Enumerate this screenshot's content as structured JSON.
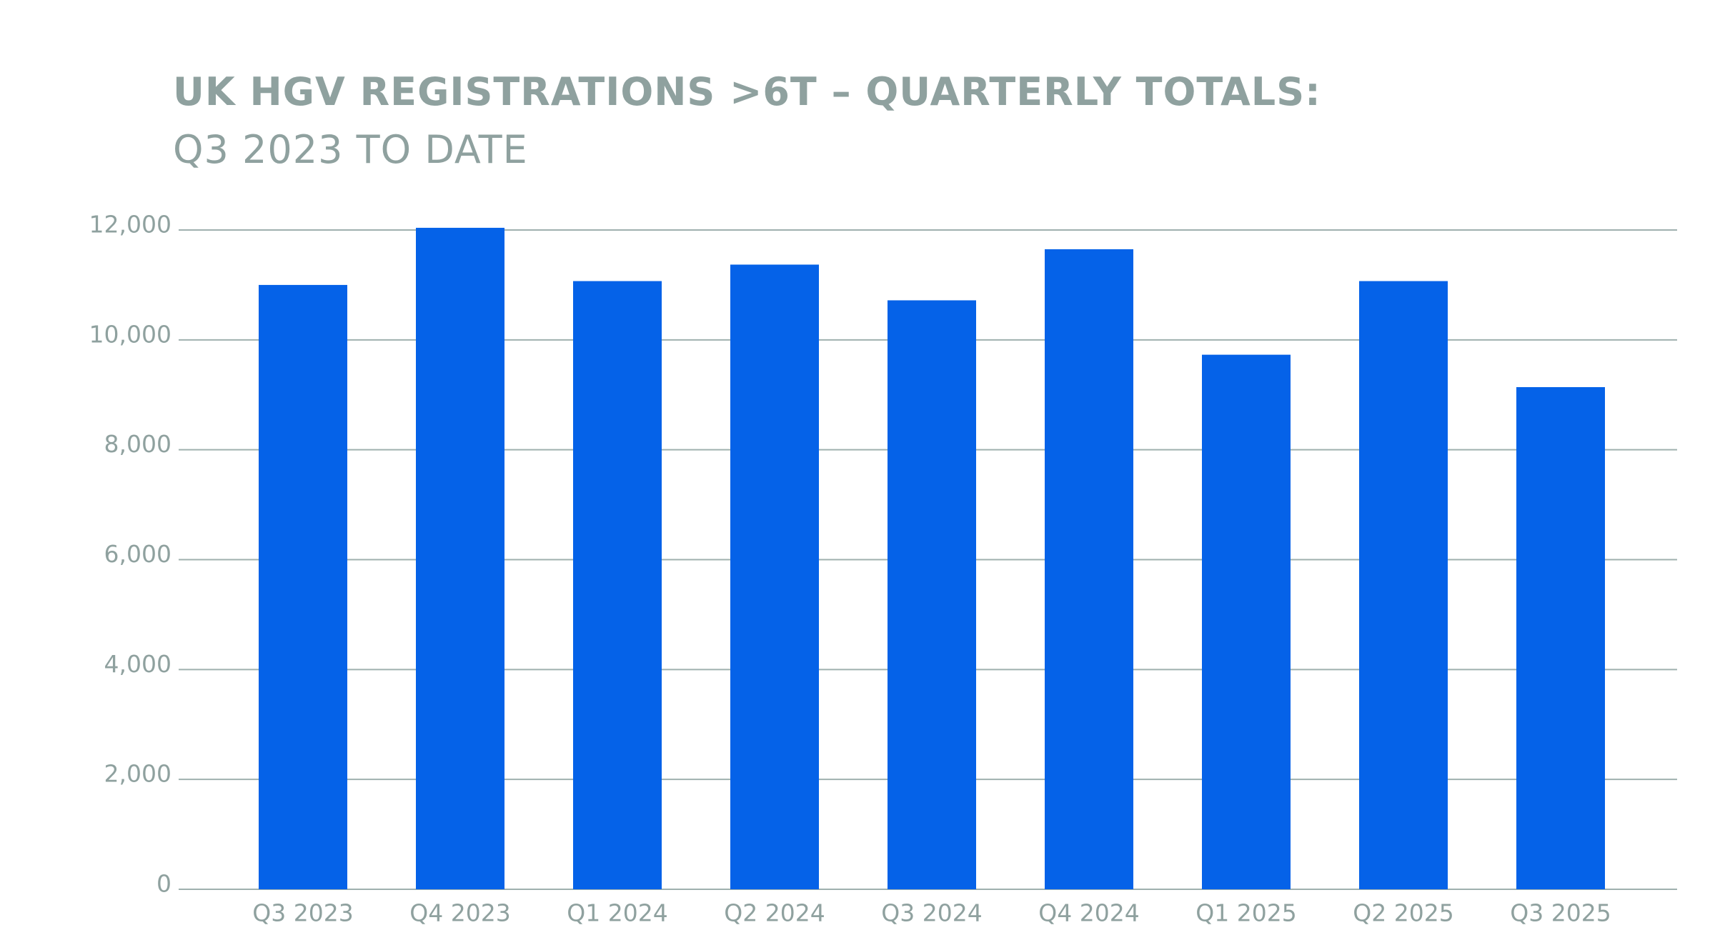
{
  "chart_data": {
    "type": "bar",
    "title": "UK HGV REGISTRATIONS >6T – QUARTERLY TOTALS:",
    "subtitle": "Q3 2023 TO DATE",
    "categories": [
      "Q3 2023",
      "Q4 2023",
      "Q1 2024",
      "Q2 2024",
      "Q3 2024",
      "Q4 2024",
      "Q1 2025",
      "Q2 2025",
      "Q3 2025"
    ],
    "values": [
      11000,
      12040,
      11070,
      11370,
      10720,
      11650,
      9730,
      11070,
      9140
    ],
    "color": "#0562e8",
    "ylim": [
      0,
      12000
    ],
    "yticks": [
      0,
      {
        "value": 2000,
        "label": "2,000"
      },
      {
        "value": 4000,
        "label": "4,000"
      },
      {
        "value": 6000,
        "label": "6,000"
      },
      {
        "value": 8000,
        "label": "8,000"
      },
      {
        "value": 10000,
        "label": "10,000"
      },
      {
        "value": 12000,
        "label": "12,000"
      }
    ],
    "grid": true
  }
}
